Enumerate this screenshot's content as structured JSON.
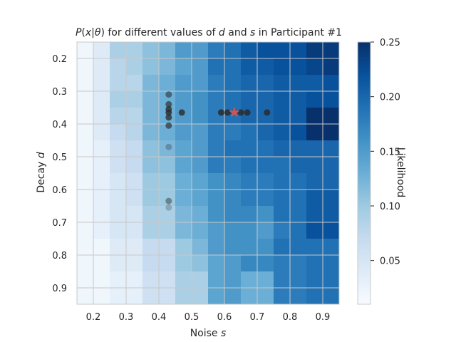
{
  "chart_data": {
    "type": "heatmap",
    "title": "P(x|θ) for different values of d and s in Participant #1",
    "title_parts": [
      {
        "text": "P",
        "italic": true
      },
      {
        "text": "(",
        "italic": false
      },
      {
        "text": "x",
        "italic": true
      },
      {
        "text": "|",
        "italic": false
      },
      {
        "text": "θ",
        "italic": true
      },
      {
        "text": ") for different values of ",
        "italic": false
      },
      {
        "text": "d",
        "italic": true
      },
      {
        "text": " and ",
        "italic": false
      },
      {
        "text": "s",
        "italic": true
      },
      {
        "text": " in Participant #1",
        "italic": false
      }
    ],
    "xlabel_parts": [
      {
        "text": "Noise ",
        "italic": false
      },
      {
        "text": "s",
        "italic": true
      }
    ],
    "ylabel_parts": [
      {
        "text": "Decay ",
        "italic": false
      },
      {
        "text": "d",
        "italic": true
      }
    ],
    "x_ticks": [
      "0.2",
      "0.3",
      "0.4",
      "0.5",
      "0.6",
      "0.7",
      "0.8",
      "0.9"
    ],
    "y_ticks": [
      "0.2",
      "0.3",
      "0.4",
      "0.5",
      "0.6",
      "0.7",
      "0.8",
      "0.9"
    ],
    "x_range": [
      0.15,
      0.95
    ],
    "y_range": [
      0.15,
      0.95
    ],
    "grid": true,
    "cell_x_edges": [
      0.15,
      0.2,
      0.25,
      0.3,
      0.35,
      0.4,
      0.45,
      0.5,
      0.55,
      0.6,
      0.65,
      0.7,
      0.75,
      0.8,
      0.85,
      0.9,
      0.95
    ],
    "cell_y_edges": [
      0.15,
      0.2,
      0.25,
      0.3,
      0.35,
      0.4,
      0.45,
      0.5,
      0.55,
      0.6,
      0.65,
      0.7,
      0.75,
      0.8,
      0.85,
      0.9,
      0.95
    ],
    "z": [
      [
        0.02,
        0.04,
        0.09,
        0.09,
        0.11,
        0.12,
        0.15,
        0.15,
        0.18,
        0.19,
        0.21,
        0.22,
        0.22,
        0.22,
        0.24,
        0.24
      ],
      [
        0.02,
        0.04,
        0.08,
        0.09,
        0.11,
        0.12,
        0.14,
        0.15,
        0.19,
        0.19,
        0.21,
        0.21,
        0.22,
        0.22,
        0.23,
        0.24
      ],
      [
        0.02,
        0.04,
        0.08,
        0.08,
        0.12,
        0.13,
        0.15,
        0.15,
        0.18,
        0.19,
        0.2,
        0.2,
        0.21,
        0.21,
        0.21,
        0.22
      ],
      [
        0.02,
        0.04,
        0.09,
        0.09,
        0.12,
        0.13,
        0.15,
        0.16,
        0.18,
        0.19,
        0.2,
        0.2,
        0.21,
        0.21,
        0.22,
        0.22
      ],
      [
        0.02,
        0.04,
        0.08,
        0.08,
        0.12,
        0.13,
        0.15,
        0.16,
        0.18,
        0.19,
        0.2,
        0.2,
        0.21,
        0.21,
        0.25,
        0.25
      ],
      [
        0.02,
        0.04,
        0.07,
        0.08,
        0.12,
        0.13,
        0.15,
        0.15,
        0.18,
        0.18,
        0.19,
        0.2,
        0.21,
        0.22,
        0.25,
        0.25
      ],
      [
        0.02,
        0.03,
        0.06,
        0.07,
        0.11,
        0.12,
        0.14,
        0.15,
        0.18,
        0.19,
        0.19,
        0.19,
        0.2,
        0.2,
        0.2,
        0.2
      ],
      [
        0.02,
        0.03,
        0.06,
        0.07,
        0.11,
        0.11,
        0.14,
        0.15,
        0.18,
        0.18,
        0.19,
        0.19,
        0.19,
        0.2,
        0.2,
        0.2
      ],
      [
        0.02,
        0.03,
        0.05,
        0.06,
        0.1,
        0.1,
        0.13,
        0.14,
        0.16,
        0.17,
        0.18,
        0.18,
        0.19,
        0.19,
        0.2,
        0.2
      ],
      [
        0.02,
        0.03,
        0.05,
        0.06,
        0.1,
        0.1,
        0.13,
        0.14,
        0.16,
        0.17,
        0.18,
        0.18,
        0.19,
        0.19,
        0.21,
        0.21
      ],
      [
        0.02,
        0.03,
        0.05,
        0.05,
        0.09,
        0.09,
        0.12,
        0.13,
        0.16,
        0.17,
        0.17,
        0.16,
        0.19,
        0.19,
        0.21,
        0.21
      ],
      [
        0.02,
        0.03,
        0.05,
        0.05,
        0.09,
        0.09,
        0.12,
        0.13,
        0.15,
        0.16,
        0.16,
        0.15,
        0.18,
        0.19,
        0.22,
        0.22
      ],
      [
        0.02,
        0.02,
        0.04,
        0.04,
        0.07,
        0.07,
        0.1,
        0.12,
        0.15,
        0.16,
        0.16,
        0.16,
        0.19,
        0.19,
        0.19,
        0.19
      ],
      [
        0.02,
        0.02,
        0.04,
        0.04,
        0.07,
        0.07,
        0.1,
        0.11,
        0.14,
        0.15,
        0.17,
        0.17,
        0.18,
        0.18,
        0.19,
        0.19
      ],
      [
        0.02,
        0.02,
        0.03,
        0.03,
        0.06,
        0.06,
        0.09,
        0.09,
        0.14,
        0.15,
        0.13,
        0.13,
        0.18,
        0.18,
        0.19,
        0.19
      ],
      [
        0.02,
        0.02,
        0.03,
        0.03,
        0.06,
        0.06,
        0.09,
        0.09,
        0.14,
        0.15,
        0.13,
        0.13,
        0.18,
        0.18,
        0.19,
        0.19
      ]
    ],
    "points": [
      {
        "x": 0.43,
        "y": 0.31,
        "alpha": 0.55
      },
      {
        "x": 0.43,
        "y": 0.34,
        "alpha": 0.65
      },
      {
        "x": 0.43,
        "y": 0.355,
        "alpha": 0.75
      },
      {
        "x": 0.43,
        "y": 0.365,
        "alpha": 0.8
      },
      {
        "x": 0.43,
        "y": 0.38,
        "alpha": 0.75
      },
      {
        "x": 0.43,
        "y": 0.405,
        "alpha": 0.65
      },
      {
        "x": 0.43,
        "y": 0.47,
        "alpha": 0.3
      },
      {
        "x": 0.43,
        "y": 0.635,
        "alpha": 0.45
      },
      {
        "x": 0.43,
        "y": 0.655,
        "alpha": 0.25
      },
      {
        "x": 0.47,
        "y": 0.365,
        "alpha": 0.8
      },
      {
        "x": 0.59,
        "y": 0.365,
        "alpha": 0.85
      },
      {
        "x": 0.61,
        "y": 0.365,
        "alpha": 0.85
      },
      {
        "x": 0.63,
        "y": 0.365,
        "alpha": 0.85
      },
      {
        "x": 0.65,
        "y": 0.365,
        "alpha": 0.85
      },
      {
        "x": 0.67,
        "y": 0.365,
        "alpha": 0.85
      },
      {
        "x": 0.73,
        "y": 0.365,
        "alpha": 0.85
      }
    ],
    "best_estimate": {
      "x": 0.63,
      "y": 0.365
    },
    "colorbar": {
      "label": "Likelihood",
      "range": [
        0.01,
        0.25
      ],
      "ticks": [
        "0.05",
        "0.10",
        "0.15",
        "0.20",
        "0.25"
      ]
    },
    "colors": {
      "cmap": [
        "#f7fbff",
        "#deebf7",
        "#c6dbef",
        "#9ecae1",
        "#6baed6",
        "#4292c6",
        "#2171b5",
        "#08519c",
        "#08306b"
      ],
      "grid": "#c8c8c8",
      "point": "#2a2a2a",
      "star": "#c8575f",
      "text": "#262626"
    }
  }
}
